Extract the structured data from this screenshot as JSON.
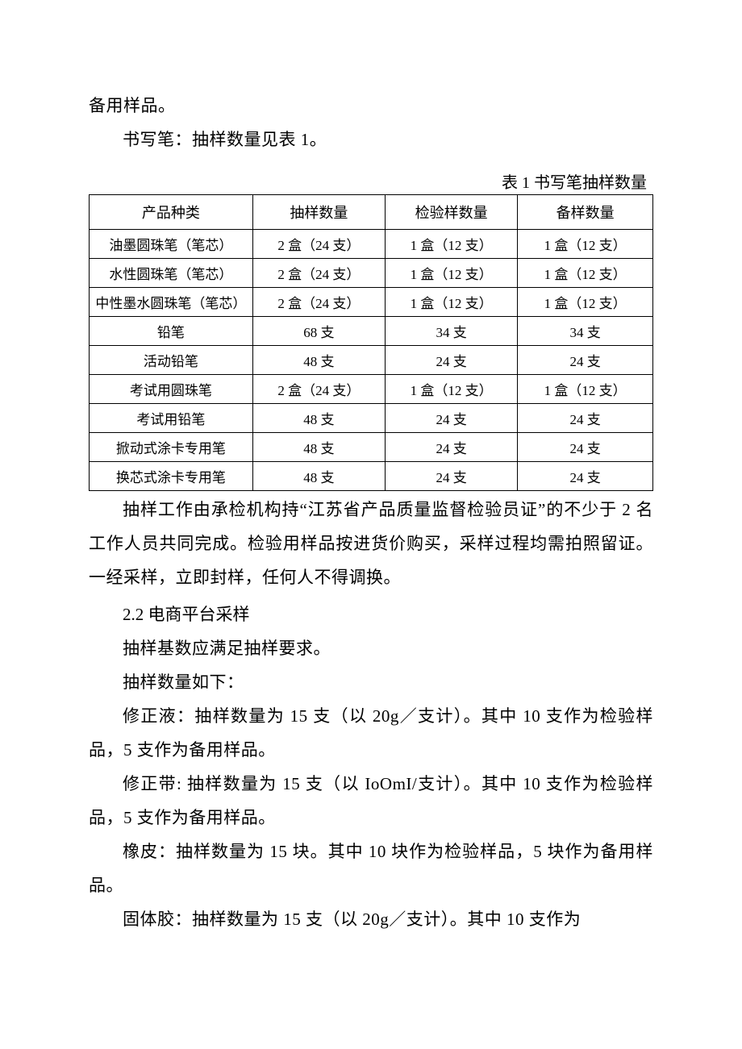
{
  "intro": {
    "line1": "备用样品。",
    "line2": "书写笔：抽样数量见表 1。"
  },
  "table": {
    "caption": "表 1 书写笔抽样数量",
    "headers": [
      "产品种类",
      "抽样数量",
      "检验样数量",
      "备样数量"
    ],
    "rows": [
      [
        "油墨圆珠笔（笔芯）",
        "2 盒（24 支）",
        "1 盒（12 支）",
        "1 盒（12 支）"
      ],
      [
        "水性圆珠笔（笔芯）",
        "2 盒（24 支）",
        "1 盒（12 支）",
        "1 盒（12 支）"
      ],
      [
        "中性墨水圆珠笔（笔芯）",
        "2 盒（24 支）",
        "1 盒（12 支）",
        "1 盒（12 支）"
      ],
      [
        "铅笔",
        "68 支",
        "34 支",
        "34 支"
      ],
      [
        "活动铅笔",
        "48 支",
        "24 支",
        "24 支"
      ],
      [
        "考试用圆珠笔",
        "2 盒（24 支）",
        "1 盒（12 支）",
        "1 盒（12 支）"
      ],
      [
        "考试用铅笔",
        "48 支",
        "24 支",
        "24 支"
      ],
      [
        "掀动式涂卡专用笔",
        "48 支",
        "24 支",
        "24 支"
      ],
      [
        "换芯式涂卡专用笔",
        "48 支",
        "24 支",
        "24 支"
      ]
    ]
  },
  "after_table": {
    "p1": "抽样工作由承检机构持“江苏省产品质量监督检验员证”的不少于 2 名工作人员共同完成。检验用样品按进货价购买，采样过程均需拍照留证。一经采样，立即封样，任何人不得调换。",
    "heading": "2.2 电商平台采样",
    "p2": "抽样基数应满足抽样要求。",
    "p3": "抽样数量如下：",
    "p4": "修正液：抽样数量为 15 支（以 20g／支计）。其中 10 支作为检验样品，5 支作为备用样品。",
    "p5": "修正带: 抽样数量为 15 支（以 IoOmI/支计）。其中 10 支作为检验样品，5 支作为备用样品。",
    "p6": "橡皮：抽样数量为 15 块。其中 10 块作为检验样品，5 块作为备用样品。",
    "p7": "固体胶：抽样数量为 15 支（以 20g／支计）。其中 10 支作为"
  }
}
